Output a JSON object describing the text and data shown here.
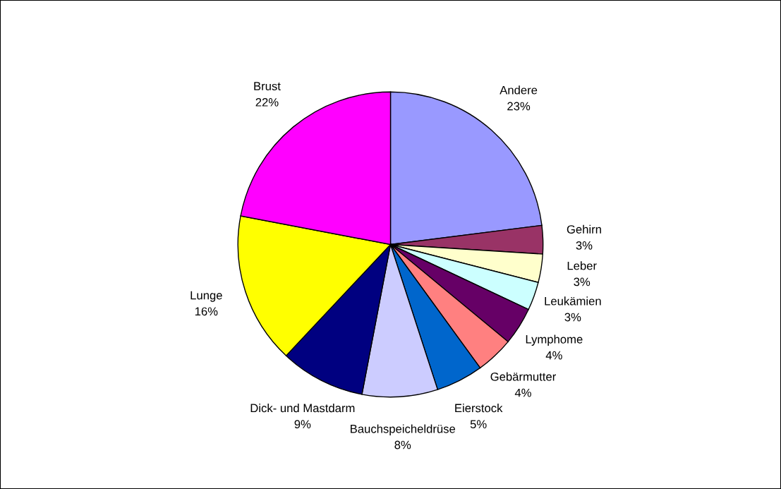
{
  "chart_data": {
    "type": "pie",
    "categories": [
      "Andere",
      "Gehirn",
      "Leber",
      "Leukämien",
      "Lymphome",
      "Gebärmutter",
      "Eierstock",
      "Bauchspeicheldrüse",
      "Dick- und Mastdarm",
      "Lunge",
      "Brust"
    ],
    "values": [
      23,
      3,
      3,
      3,
      4,
      4,
      5,
      8,
      9,
      16,
      22
    ],
    "value_labels": [
      "23%",
      "3%",
      "3%",
      "3%",
      "4%",
      "4%",
      "5%",
      "8%",
      "9%",
      "16%",
      "22%"
    ],
    "colors": [
      "#9999ff",
      "#993366",
      "#ffffcc",
      "#ccffff",
      "#660066",
      "#ff8080",
      "#0066cc",
      "#ccccff",
      "#000080",
      "#ffff00",
      "#ff00ff"
    ],
    "legend": false
  }
}
